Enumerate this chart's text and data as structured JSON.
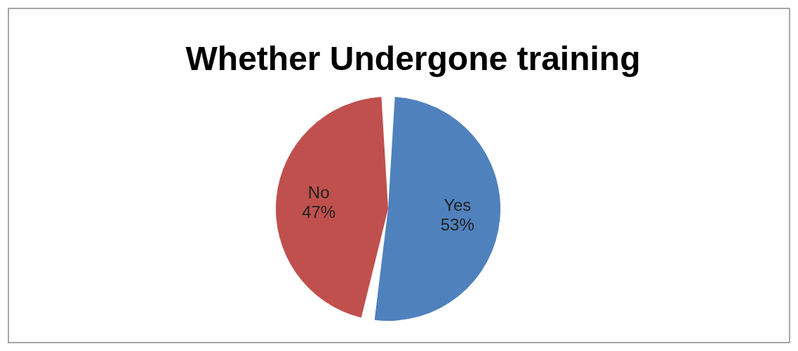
{
  "chart_data": {
    "type": "pie",
    "title": "Whether Undergone training",
    "categories": [
      "Yes",
      "No"
    ],
    "values": [
      53,
      47
    ],
    "value_labels": [
      "53%",
      "47%"
    ],
    "colors": [
      "#4f81bd",
      "#c0504d"
    ]
  }
}
